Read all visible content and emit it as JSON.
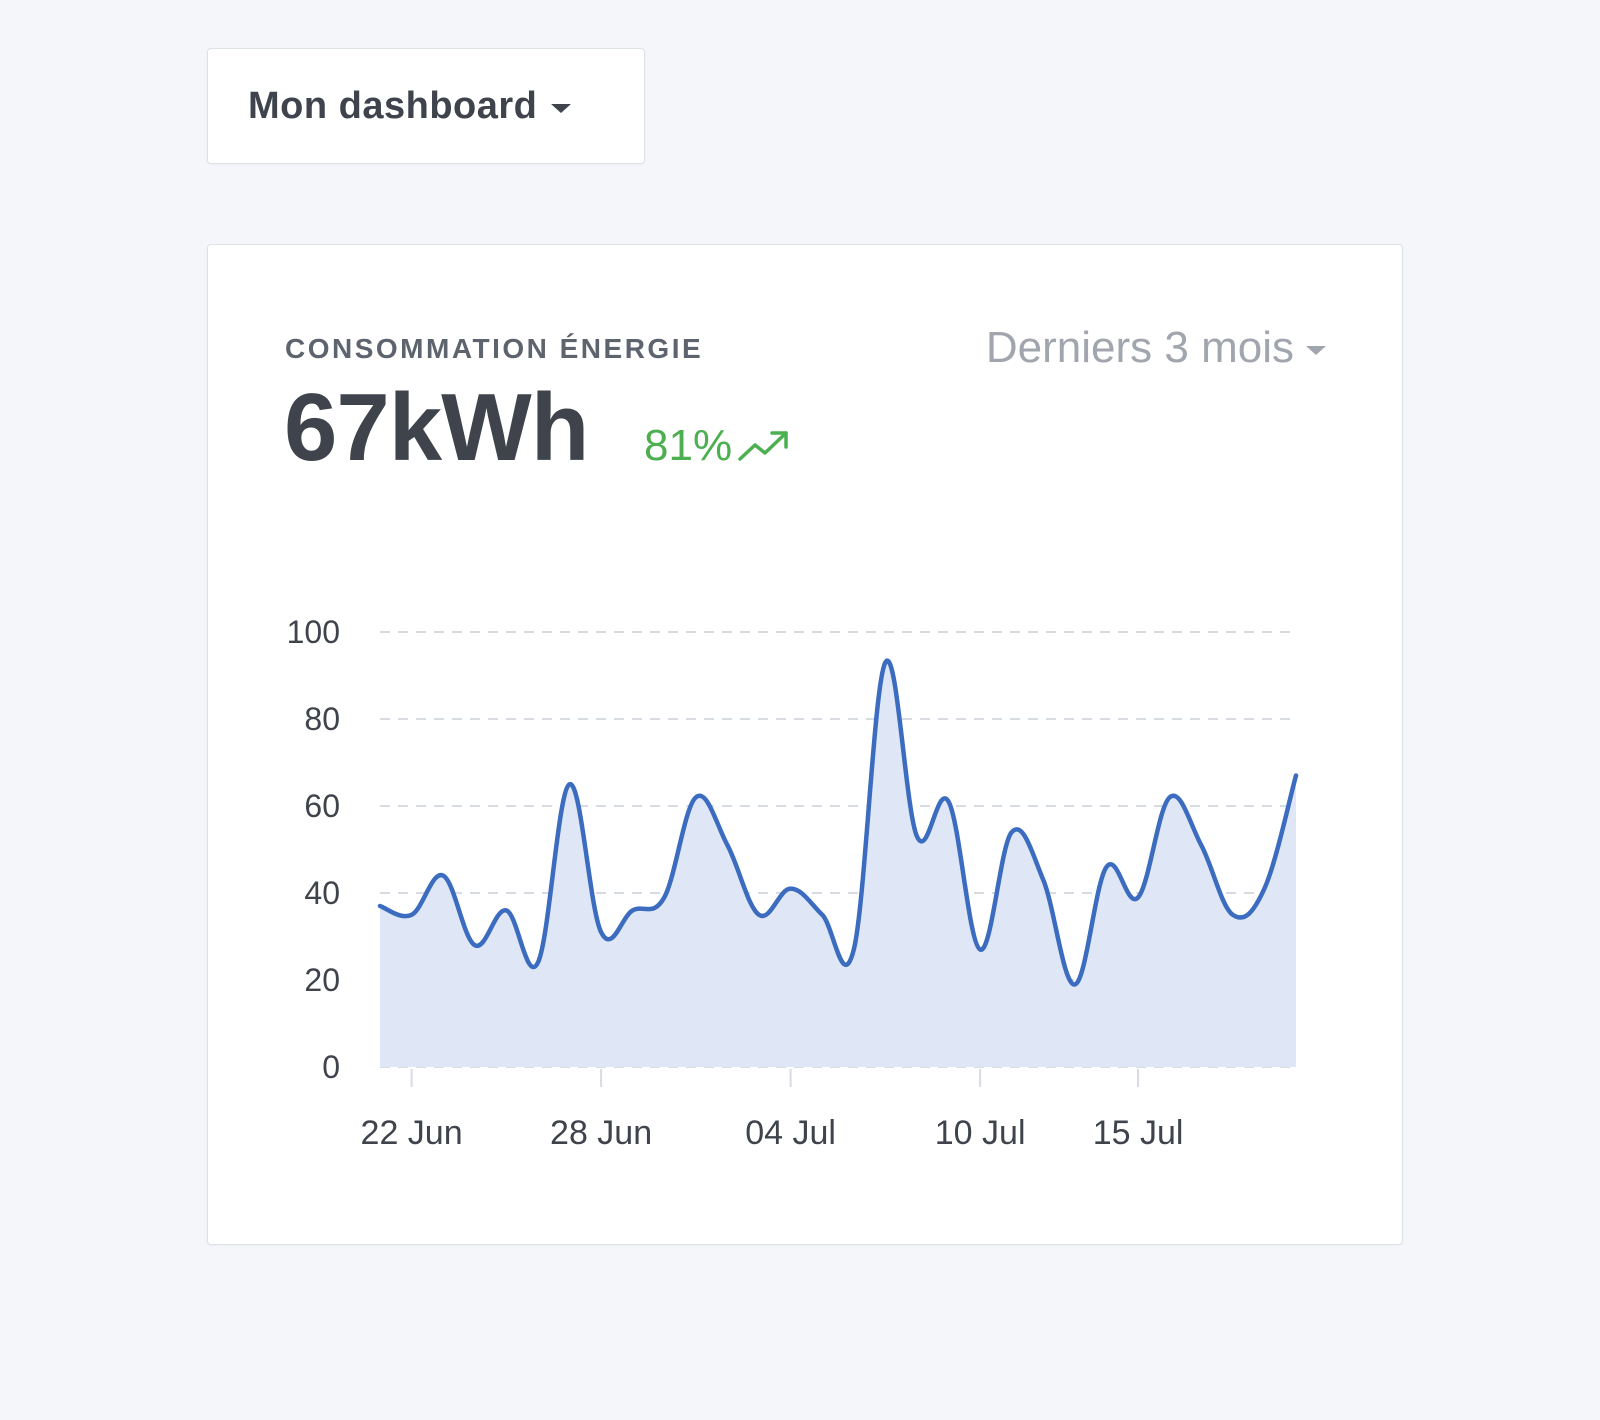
{
  "header": {
    "dashboard_label": "Mon dashboard"
  },
  "card": {
    "title": "CONSOMMATION ÉNERGIE",
    "value": "67kWh",
    "change": "81%",
    "change_icon": "trending-up-icon",
    "period_label": "Derniers 3 mois"
  },
  "colors": {
    "line": "#3b6cbf",
    "area": "#dfe6f5",
    "positive": "#4caf50",
    "grid": "#d7dbe2"
  },
  "chart_data": {
    "type": "area",
    "x_ticks": [
      "22 Jun",
      "28 Jun",
      "04 Jul",
      "10 Jul",
      "15 Jul"
    ],
    "x_tick_dates": [
      "2019-06-22",
      "2019-06-28",
      "2019-07-04",
      "2019-07-10",
      "2019-07-15"
    ],
    "x": [
      "2019-06-21",
      "2019-06-22",
      "2019-06-23",
      "2019-06-24",
      "2019-06-25",
      "2019-06-26",
      "2019-06-27",
      "2019-06-28",
      "2019-06-29",
      "2019-06-30",
      "2019-07-01",
      "2019-07-02",
      "2019-07-03",
      "2019-07-04",
      "2019-07-05",
      "2019-07-06",
      "2019-07-07",
      "2019-07-08",
      "2019-07-09",
      "2019-07-10",
      "2019-07-11",
      "2019-07-12",
      "2019-07-13",
      "2019-07-14",
      "2019-07-15",
      "2019-07-16",
      "2019-07-17",
      "2019-07-18",
      "2019-07-19",
      "2019-07-20"
    ],
    "values": [
      37,
      35,
      44,
      28,
      36,
      24,
      65,
      31,
      36,
      39,
      62,
      51,
      35,
      41,
      35,
      27,
      93,
      53,
      61,
      27,
      54,
      43,
      19,
      46,
      39,
      62,
      51,
      35,
      41,
      67
    ],
    "ylim": [
      0,
      100
    ],
    "y_ticks": [
      0,
      20,
      40,
      60,
      80,
      100
    ],
    "grid": true
  }
}
